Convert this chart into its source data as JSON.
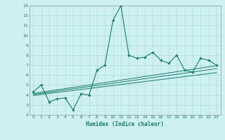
{
  "title": "",
  "xlabel": "Humidex (Indice chaleur)",
  "bg_color": "#cff0f0",
  "grid_color": "#aadddd",
  "line_color": "#1a7a6e",
  "xlim": [
    -0.5,
    23.5
  ],
  "ylim": [
    2,
    13
  ],
  "xticks": [
    0,
    1,
    2,
    3,
    4,
    5,
    6,
    7,
    8,
    9,
    10,
    11,
    12,
    13,
    14,
    15,
    16,
    17,
    18,
    19,
    20,
    21,
    22,
    23
  ],
  "yticks": [
    2,
    3,
    4,
    5,
    6,
    7,
    8,
    9,
    10,
    11,
    12,
    13
  ],
  "main_x": [
    0,
    1,
    2,
    3,
    4,
    5,
    6,
    7,
    8,
    9,
    10,
    11,
    12,
    13,
    14,
    15,
    16,
    17,
    18,
    19,
    20,
    21,
    22,
    23
  ],
  "main_y": [
    4.3,
    5.0,
    3.3,
    3.6,
    3.7,
    2.5,
    4.1,
    4.0,
    6.5,
    7.0,
    11.5,
    13.0,
    8.0,
    7.7,
    7.8,
    8.3,
    7.5,
    7.2,
    8.0,
    6.5,
    6.3,
    7.7,
    7.5,
    7.0
  ],
  "line1_x": [
    0,
    23
  ],
  "line1_y": [
    4.15,
    6.95
  ],
  "line2_x": [
    0,
    23
  ],
  "line2_y": [
    4.05,
    6.65
  ],
  "line3_x": [
    0,
    23
  ],
  "line3_y": [
    3.95,
    6.25
  ]
}
